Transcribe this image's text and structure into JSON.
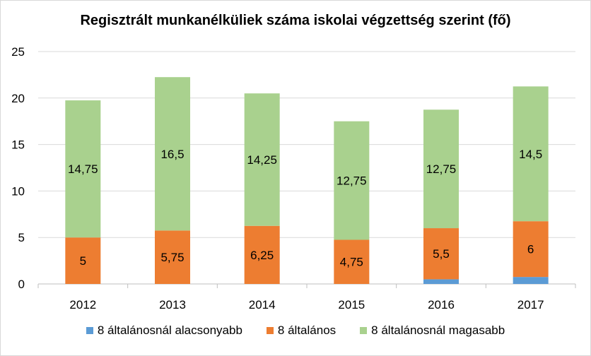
{
  "chart_data": {
    "type": "bar",
    "stacked": true,
    "title": "Regisztrált munkanélküliek száma iskolai végzettség szerint (fő)",
    "categories": [
      "2012",
      "2013",
      "2014",
      "2015",
      "2016",
      "2017"
    ],
    "ylim": [
      0,
      25
    ],
    "yticks": [
      "0",
      "5",
      "10",
      "15",
      "20",
      "25"
    ],
    "grid": true,
    "legend_position": "bottom",
    "series": [
      {
        "name": "8 általánosnál alacsonyabb",
        "color": "#5b9bd5",
        "values": [
          0,
          0,
          0,
          0,
          0.5,
          0.75
        ],
        "labels": [
          "",
          "",
          "",
          "",
          "",
          ""
        ]
      },
      {
        "name": "8 általános",
        "color": "#ed7d31",
        "values": [
          5,
          5.75,
          6.25,
          4.75,
          5.5,
          6
        ],
        "labels": [
          "5",
          "5,75",
          "6,25",
          "4,75",
          "5,5",
          "6"
        ]
      },
      {
        "name": "8 általánosnál magasabb",
        "color": "#a9d18e",
        "values": [
          14.75,
          16.5,
          14.25,
          12.75,
          12.75,
          14.5
        ],
        "labels": [
          "14,75",
          "16,5",
          "14,25",
          "12,75",
          "12,75",
          "14,5"
        ]
      }
    ]
  }
}
